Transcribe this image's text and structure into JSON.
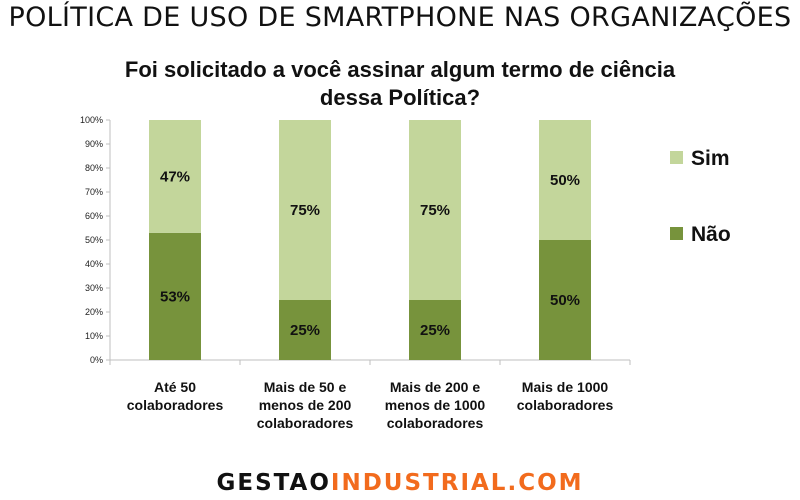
{
  "header": {
    "title": "POLÍTICA DE USO DE SMARTPHONE NAS ORGANIZAÇÕES"
  },
  "footer": {
    "logo_part1": "GESTAO",
    "logo_part2": "INDUSTRIAL.COM",
    "colors": {
      "part1": "#111111",
      "part2": "#f26b1d"
    }
  },
  "chart_data": {
    "type": "bar",
    "stacked": true,
    "percent_stacked": true,
    "title": "Foi solicitado a você assinar algum termo de ciência dessa Política?",
    "title_lines": [
      "Foi solicitado a você assinar algum termo de ciência",
      "dessa Política?"
    ],
    "xlabel": "",
    "ylabel": "",
    "ylim": [
      0,
      100
    ],
    "yticks": [
      0,
      10,
      20,
      30,
      40,
      50,
      60,
      70,
      80,
      90,
      100
    ],
    "ytick_labels": [
      "0%",
      "10%",
      "20%",
      "30%",
      "40%",
      "50%",
      "60%",
      "70%",
      "80%",
      "90%",
      "100%"
    ],
    "categories": [
      [
        "Até 50",
        "colaboradores"
      ],
      [
        "Mais de 50 e",
        "menos de 200",
        "colaboradores"
      ],
      [
        "Mais de 200 e",
        "menos de 1000",
        "colaboradores"
      ],
      [
        "Mais de 1000",
        "colaboradores"
      ]
    ],
    "series": [
      {
        "name": "Não",
        "color": "#77933c",
        "values": [
          53,
          25,
          25,
          50
        ],
        "labels": [
          "53%",
          "25%",
          "25%",
          "50%"
        ]
      },
      {
        "name": "Sim",
        "color": "#c3d69b",
        "values": [
          47,
          75,
          75,
          50
        ],
        "labels": [
          "47%",
          "75%",
          "75%",
          "50%"
        ]
      }
    ],
    "legend": {
      "position": "right",
      "order": [
        "Sim",
        "Não"
      ]
    },
    "grid": false
  }
}
